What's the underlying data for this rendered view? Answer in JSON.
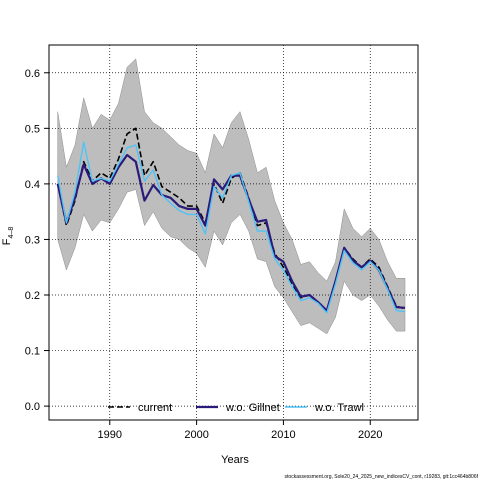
{
  "chart_data": {
    "type": "line",
    "xlabel": "Years",
    "ylabel": "F",
    "ylabel_sub": "4–8",
    "xlim": [
      1983,
      2025.5
    ],
    "ylim": [
      -0.025,
      0.65
    ],
    "x_ticks": [
      1990,
      2000,
      2010,
      2020
    ],
    "y_ticks": [
      0.0,
      0.1,
      0.2,
      0.3,
      0.4,
      0.5,
      0.6
    ],
    "y_tick_labels": [
      "0.0",
      "0.1",
      "0.2",
      "0.3",
      "0.4",
      "0.5",
      "0.6"
    ],
    "grid": true,
    "legend_position": "bottom",
    "x": [
      1984,
      1985,
      1986,
      1987,
      1988,
      1989,
      1990,
      1991,
      1992,
      1993,
      1994,
      1995,
      1996,
      1997,
      1998,
      1999,
      2000,
      2001,
      2002,
      2003,
      2004,
      2005,
      2006,
      2007,
      2008,
      2009,
      2010,
      2011,
      2012,
      2013,
      2014,
      2015,
      2016,
      2017,
      2018,
      2019,
      2020,
      2021,
      2022,
      2023,
      2024
    ],
    "band": {
      "upper": [
        0.53,
        0.43,
        0.47,
        0.555,
        0.5,
        0.525,
        0.515,
        0.545,
        0.61,
        0.625,
        0.53,
        0.51,
        0.5,
        0.485,
        0.47,
        0.46,
        0.455,
        0.42,
        0.49,
        0.465,
        0.51,
        0.53,
        0.48,
        0.42,
        0.43,
        0.37,
        0.33,
        0.3,
        0.255,
        0.26,
        0.24,
        0.225,
        0.26,
        0.355,
        0.32,
        0.305,
        0.32,
        0.3,
        0.26,
        0.23,
        0.23
      ],
      "lower": [
        0.3,
        0.245,
        0.285,
        0.345,
        0.315,
        0.335,
        0.33,
        0.355,
        0.385,
        0.39,
        0.325,
        0.35,
        0.32,
        0.305,
        0.3,
        0.285,
        0.275,
        0.25,
        0.315,
        0.29,
        0.33,
        0.345,
        0.315,
        0.265,
        0.26,
        0.215,
        0.195,
        0.17,
        0.145,
        0.15,
        0.14,
        0.13,
        0.16,
        0.225,
        0.2,
        0.19,
        0.2,
        0.18,
        0.155,
        0.135,
        0.135
      ]
    },
    "series": [
      {
        "name": "current",
        "color": "#000000",
        "dash": "6,3",
        "values": [
          0.4,
          0.325,
          0.37,
          0.44,
          0.405,
          0.42,
          0.41,
          0.445,
          0.49,
          0.5,
          0.415,
          0.44,
          0.395,
          0.385,
          0.375,
          0.36,
          0.36,
          0.33,
          0.4,
          0.365,
          0.41,
          0.42,
          0.375,
          0.325,
          0.33,
          0.275,
          0.25,
          0.22,
          0.195,
          0.2,
          0.185,
          0.17,
          0.225,
          0.285,
          0.265,
          0.25,
          0.265,
          0.25,
          0.215,
          0.18,
          0.175
        ]
      },
      {
        "name": "w.o. Gillnet",
        "color": "#2a1b7a",
        "dash": "",
        "values": [
          0.4,
          0.33,
          0.375,
          0.435,
          0.4,
          0.41,
          0.4,
          0.43,
          0.452,
          0.44,
          0.37,
          0.398,
          0.38,
          0.375,
          0.36,
          0.355,
          0.355,
          0.325,
          0.408,
          0.39,
          0.415,
          0.415,
          0.372,
          0.332,
          0.335,
          0.27,
          0.26,
          0.225,
          0.197,
          0.2,
          0.187,
          0.172,
          0.225,
          0.285,
          0.262,
          0.25,
          0.262,
          0.245,
          0.212,
          0.178,
          0.177
        ]
      },
      {
        "name": "w.o. Trawl",
        "color": "#4fc3f7",
        "dash": "",
        "values": [
          0.415,
          0.33,
          0.385,
          0.475,
          0.405,
          0.41,
          0.405,
          0.435,
          0.465,
          0.47,
          0.405,
          0.425,
          0.38,
          0.365,
          0.352,
          0.345,
          0.345,
          0.31,
          0.395,
          0.375,
          0.415,
          0.42,
          0.368,
          0.315,
          0.315,
          0.265,
          0.245,
          0.215,
          0.19,
          0.195,
          0.185,
          0.168,
          0.22,
          0.28,
          0.258,
          0.245,
          0.26,
          0.245,
          0.21,
          0.172,
          0.17
        ]
      }
    ]
  },
  "footnote": "stockassessment.org, Sole20_24_2025_new_indicesCV_cont, r19283, git:1cc464b806f"
}
